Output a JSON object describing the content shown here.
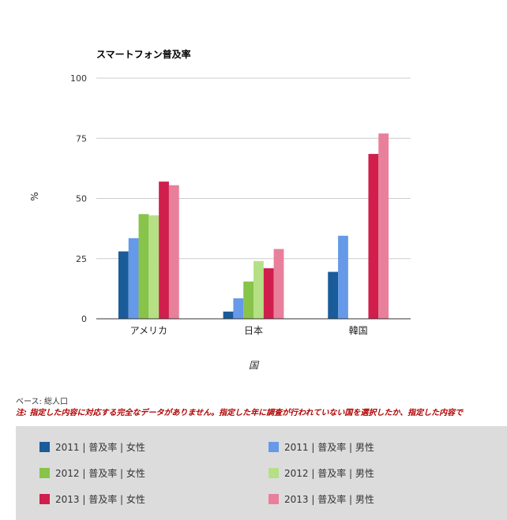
{
  "chart_data": {
    "type": "bar",
    "title": "スマートフォン普及率",
    "xlabel": "国",
    "ylabel": "%",
    "ylim": [
      0,
      100
    ],
    "yticks": [
      0,
      25,
      50,
      75,
      100
    ],
    "grid": true,
    "categories": [
      "アメリカ",
      "日本",
      "韓国"
    ],
    "series": [
      {
        "name": "2011 | 普及率 | 女性",
        "color": "#1a5b9a",
        "values": [
          28,
          3,
          19.5
        ]
      },
      {
        "name": "2011 | 普及率 | 男性",
        "color": "#6699e8",
        "values": [
          33.5,
          8.5,
          34.5
        ]
      },
      {
        "name": "2012 | 普及率 | 女性",
        "color": "#88c34a",
        "values": [
          43.5,
          15.5,
          null
        ]
      },
      {
        "name": "2012 | 普及率 | 男性",
        "color": "#b5e085",
        "values": [
          43,
          24,
          null
        ]
      },
      {
        "name": "2013 | 普及率 | 女性",
        "color": "#d01e4d",
        "values": [
          57,
          21,
          68.5
        ]
      },
      {
        "name": "2013 | 普及率 | 男性",
        "color": "#e8809c",
        "values": [
          55.5,
          29,
          77
        ]
      }
    ],
    "legend_position": "bottom"
  },
  "notes": {
    "base": "ベース: 総人口",
    "warning": "注: 指定した内容に対応する完全なデータがありません。指定した年に調査が行われていない国を選択したか、指定した内容で"
  }
}
